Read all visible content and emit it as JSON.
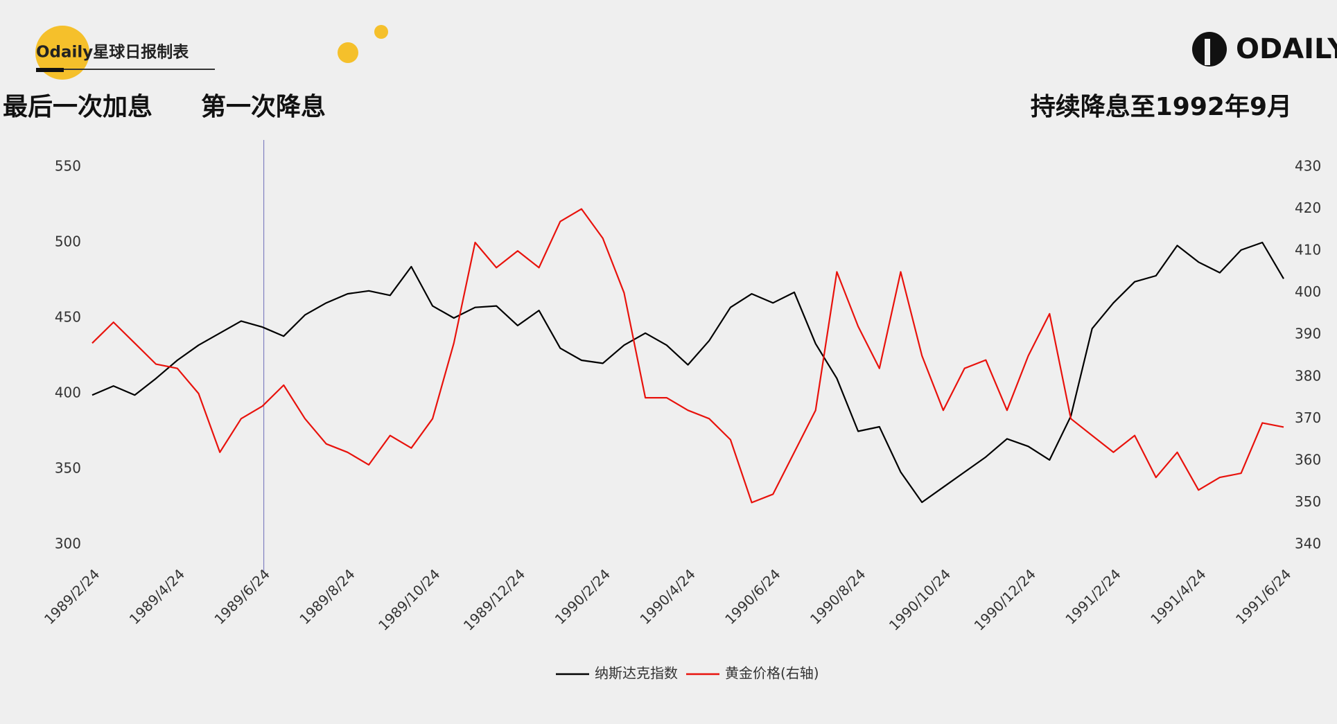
{
  "header": {
    "brand": "Odaily星球日报制表",
    "logo": "ODAILY"
  },
  "annotations": [
    "最后一次加息",
    "第一次降息",
    "持续降息至1992年9月"
  ],
  "chart_data": {
    "type": "line",
    "categories": [
      "1989/2/24",
      null,
      null,
      null,
      "1989/4/24",
      null,
      null,
      null,
      "1989/6/24",
      null,
      null,
      null,
      "1989/8/24",
      null,
      null,
      null,
      "1989/10/24",
      null,
      null,
      null,
      "1989/12/24",
      null,
      null,
      null,
      "1990/2/24",
      null,
      null,
      null,
      "1990/4/24",
      null,
      null,
      null,
      "1990/6/24",
      null,
      null,
      null,
      "1990/8/24",
      null,
      null,
      null,
      "1990/10/24",
      null,
      null,
      null,
      "1990/12/24",
      null,
      null,
      null,
      "1991/2/24",
      null,
      null,
      null,
      "1991/4/24",
      null,
      null,
      null,
      "1991/6/24"
    ],
    "series": [
      {
        "name": "纳斯达克指数",
        "color": "#000000",
        "values": [
          399,
          405,
          399,
          410,
          422,
          432,
          440,
          448,
          444,
          438,
          452,
          460,
          466,
          468,
          465,
          484,
          458,
          450,
          457,
          458,
          445,
          455,
          430,
          422,
          420,
          432,
          440,
          432,
          419,
          435,
          457,
          466,
          460,
          467,
          433,
          410,
          375,
          378,
          348,
          328,
          338,
          348,
          358,
          370,
          365,
          356,
          385,
          443,
          460,
          474,
          478,
          498,
          487,
          480,
          495,
          500,
          476
        ]
      },
      {
        "name": "黄金价格(右轴)",
        "color": "#e8120c",
        "axis": "y2",
        "values": [
          388,
          393,
          388,
          383,
          382,
          376,
          362,
          370,
          373,
          378,
          370,
          364,
          362,
          359,
          366,
          363,
          370,
          388,
          412,
          406,
          410,
          406,
          417,
          420,
          413,
          400,
          375,
          375,
          372,
          370,
          365,
          350,
          352,
          362,
          372,
          405,
          392,
          382,
          405,
          385,
          372,
          382,
          384,
          372,
          385,
          395,
          370,
          366,
          362,
          366,
          356,
          362,
          353,
          356,
          357,
          369,
          368
        ]
      }
    ],
    "ylim": [
      300,
      550
    ],
    "yticks": [
      300,
      350,
      400,
      450,
      500,
      550
    ],
    "y2lim": [
      340,
      430
    ],
    "y2ticks": [
      340,
      350,
      360,
      370,
      380,
      390,
      400,
      410,
      420,
      430
    ]
  }
}
